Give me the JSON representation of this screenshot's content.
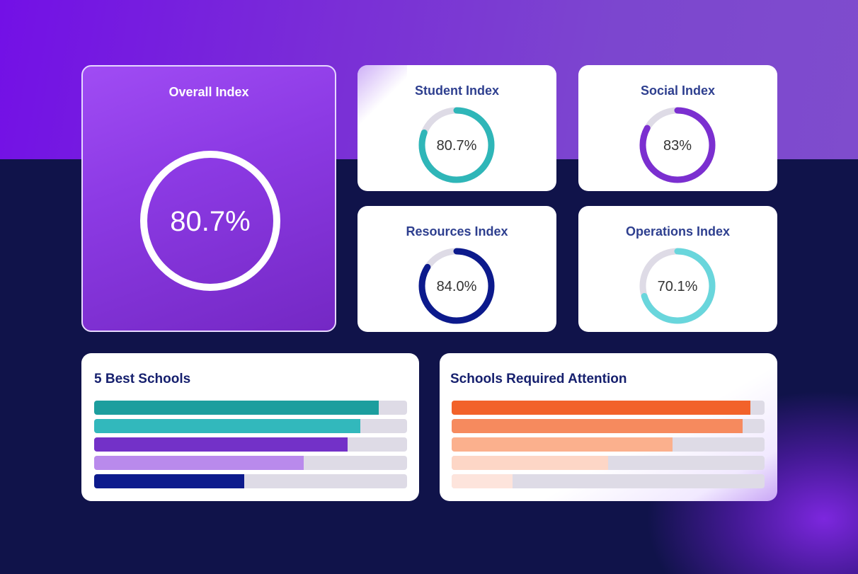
{
  "colors": {
    "ring_track_light": "#dedbe6",
    "overall_arc": "#0d1c8c",
    "student": "#2fb6b8",
    "social": "#7b2fd0",
    "resources": "#0c1a8c",
    "operations": "#69d6dc",
    "best_bars": [
      "#1c9e9e",
      "#32b8bc",
      "#7331c8",
      "#b98aec",
      "#0c1a8c"
    ],
    "attention_bars": [
      "#f2622a",
      "#f68a5e",
      "#fbb08d",
      "#fdd6c6",
      "#fde4dc"
    ]
  },
  "overall": {
    "title": "Overall Index",
    "value_label": "80.7%",
    "value": 80.7
  },
  "indices": [
    {
      "title": "Student Index",
      "value_label": "80.7%",
      "value": 80.7
    },
    {
      "title": "Social Index",
      "value_label": "83%",
      "value": 83
    },
    {
      "title": "Resources Index",
      "value_label": "84.0%",
      "value": 84.0
    },
    {
      "title": "Operations Index",
      "value_label": "70.1%",
      "value": 70.1
    }
  ],
  "best_schools": {
    "title": "5 Best Schools",
    "fractions": [
      0.91,
      0.85,
      0.81,
      0.67,
      0.48
    ]
  },
  "attention_schools": {
    "title": "Schools Required Attention",
    "fractions": [
      0.955,
      0.93,
      0.705,
      0.5,
      0.195
    ]
  }
}
